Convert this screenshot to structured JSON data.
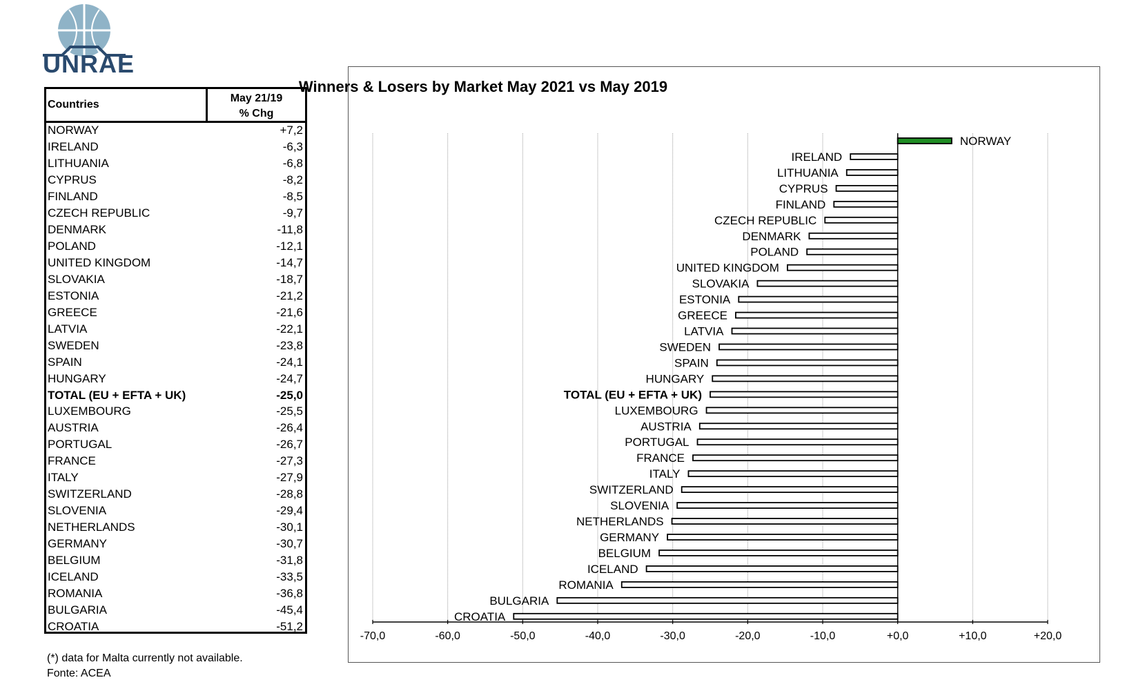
{
  "logo": {
    "text": "UNRAE",
    "color": "#2a4a6e",
    "globe_color": "#8fb3c7"
  },
  "table": {
    "header_country": "Countries",
    "header_change_line1": "May 21/19",
    "header_change_line2": "% Chg",
    "rows": [
      {
        "country": "NORWAY",
        "value": "+7,2"
      },
      {
        "country": "IRELAND",
        "value": "-6,3"
      },
      {
        "country": "LITHUANIA",
        "value": "-6,8"
      },
      {
        "country": "CYPRUS",
        "value": "-8,2"
      },
      {
        "country": "FINLAND",
        "value": "-8,5"
      },
      {
        "country": "CZECH REPUBLIC",
        "value": "-9,7"
      },
      {
        "country": "DENMARK",
        "value": "-11,8"
      },
      {
        "country": "POLAND",
        "value": "-12,1"
      },
      {
        "country": "UNITED KINGDOM",
        "value": "-14,7"
      },
      {
        "country": "SLOVAKIA",
        "value": "-18,7"
      },
      {
        "country": "ESTONIA",
        "value": "-21,2"
      },
      {
        "country": "GREECE",
        "value": "-21,6"
      },
      {
        "country": "LATVIA",
        "value": "-22,1"
      },
      {
        "country": "SWEDEN",
        "value": "-23,8"
      },
      {
        "country": "SPAIN",
        "value": "-24,1"
      },
      {
        "country": "HUNGARY",
        "value": "-24,7"
      },
      {
        "country": "TOTAL (EU + EFTA + UK)",
        "value": "-25,0",
        "bold": true
      },
      {
        "country": "LUXEMBOURG",
        "value": "-25,5"
      },
      {
        "country": "AUSTRIA",
        "value": "-26,4"
      },
      {
        "country": "PORTUGAL",
        "value": "-26,7"
      },
      {
        "country": "FRANCE",
        "value": "-27,3"
      },
      {
        "country": "ITALY",
        "value": "-27,9"
      },
      {
        "country": "SWITZERLAND",
        "value": "-28,8"
      },
      {
        "country": "SLOVENIA",
        "value": "-29,4"
      },
      {
        "country": "NETHERLANDS",
        "value": "-30,1"
      },
      {
        "country": "GERMANY",
        "value": "-30,7"
      },
      {
        "country": "BELGIUM",
        "value": "-31,8"
      },
      {
        "country": "ICELAND",
        "value": "-33,5"
      },
      {
        "country": "ROMANIA",
        "value": "-36,8"
      },
      {
        "country": "BULGARIA",
        "value": "-45,4"
      },
      {
        "country": "CROATIA",
        "value": "-51,2"
      }
    ]
  },
  "footnote": "(*) data for Malta currently not available.",
  "source": "Fonte: ACEA",
  "chart_data": {
    "type": "bar",
    "orientation": "horizontal",
    "title": "Winners & Losers by Market May 2021 vs May 2019",
    "xlabel": "",
    "ylabel": "",
    "xlim": [
      -70,
      20
    ],
    "x_ticks": [
      -70,
      -60,
      -50,
      -40,
      -30,
      -20,
      -10,
      0,
      10,
      20
    ],
    "x_tick_labels": [
      "-70,0",
      "-60,0",
      "-50,0",
      "-40,0",
      "-30,0",
      "-20,0",
      "-10,0",
      "+0,0",
      "+10,0",
      "+20,0"
    ],
    "grid": "vertical",
    "positive_color": "#1e8c23",
    "negative_color": "#ffffff",
    "bold_category": "TOTAL (EU + EFTA + UK)",
    "categories": [
      "NORWAY",
      "IRELAND",
      "LITHUANIA",
      "CYPRUS",
      "FINLAND",
      "CZECH REPUBLIC",
      "DENMARK",
      "POLAND",
      "UNITED KINGDOM",
      "SLOVAKIA",
      "ESTONIA",
      "GREECE",
      "LATVIA",
      "SWEDEN",
      "SPAIN",
      "HUNGARY",
      "TOTAL (EU + EFTA + UK)",
      "LUXEMBOURG",
      "AUSTRIA",
      "PORTUGAL",
      "FRANCE",
      "ITALY",
      "SWITZERLAND",
      "SLOVENIA",
      "NETHERLANDS",
      "GERMANY",
      "BELGIUM",
      "ICELAND",
      "ROMANIA",
      "BULGARIA",
      "CROATIA"
    ],
    "values": [
      7.2,
      -6.3,
      -6.8,
      -8.2,
      -8.5,
      -9.7,
      -11.8,
      -12.1,
      -14.7,
      -18.7,
      -21.2,
      -21.6,
      -22.1,
      -23.8,
      -24.1,
      -24.7,
      -25.0,
      -25.5,
      -26.4,
      -26.7,
      -27.3,
      -27.9,
      -28.8,
      -29.4,
      -30.1,
      -30.7,
      -31.8,
      -33.5,
      -36.8,
      -45.4,
      -51.2
    ]
  }
}
